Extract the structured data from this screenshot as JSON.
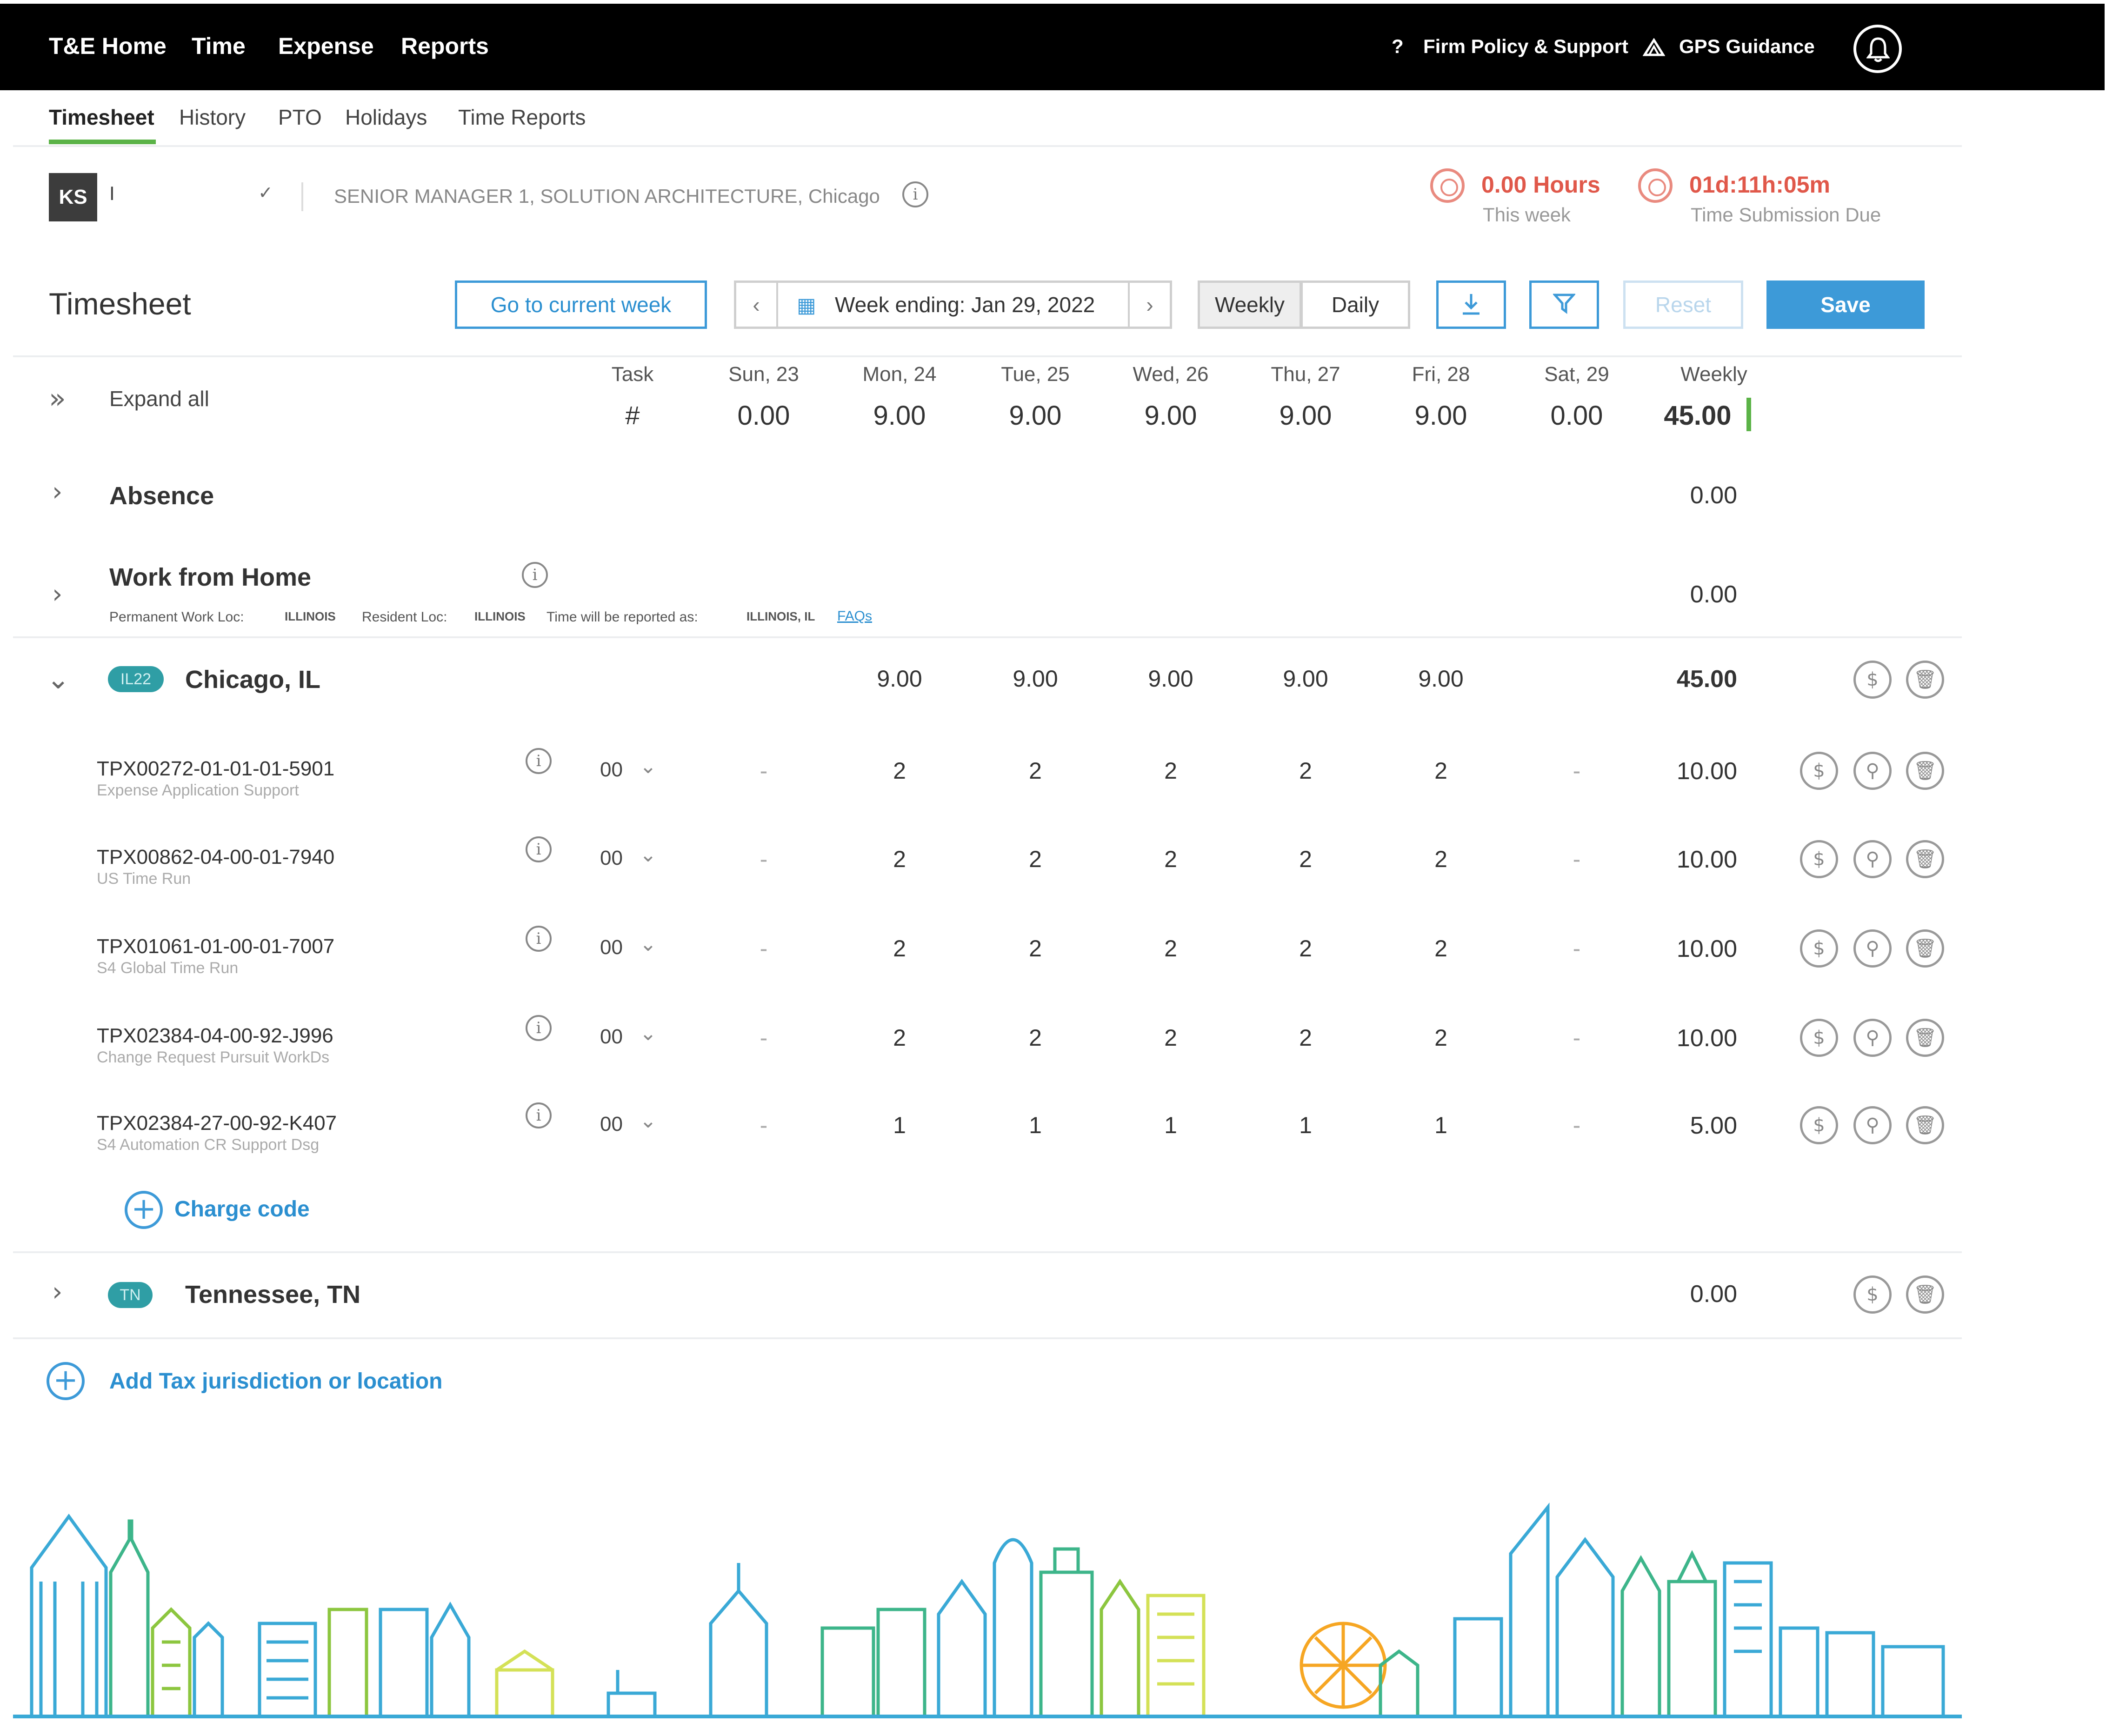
{
  "topbar": {
    "nav": [
      "T&E Home",
      "Time",
      "Expense",
      "Reports"
    ],
    "firm_policy": "Firm Policy & Support",
    "gps": "GPS Guidance"
  },
  "subnav": [
    "Timesheet",
    "History",
    "PTO",
    "Holidays",
    "Time Reports"
  ],
  "profile": {
    "initials": "KS",
    "name": "I",
    "title": "SENIOR MANAGER 1, SOLUTION ARCHITECTURE, Chicago"
  },
  "stats": {
    "hours_value": "0.00 Hours",
    "hours_label": "This week",
    "due_value": "01d:11h:05m",
    "due_label": "Time Submission Due"
  },
  "toolbar": {
    "title": "Timesheet",
    "current_week": "Go to current week",
    "week_ending": "Week ending: Jan 29, 2022",
    "weekly": "Weekly",
    "daily": "Daily",
    "reset": "Reset",
    "save": "Save"
  },
  "grid": {
    "expand_all": "Expand all",
    "task_header": "Task",
    "task_hash": "#",
    "days": [
      "Sun, 23",
      "Mon, 24",
      "Tue, 25",
      "Wed, 26",
      "Thu, 27",
      "Fri, 28",
      "Sat, 29"
    ],
    "weekly_header": "Weekly",
    "day_totals": [
      "0.00",
      "9.00",
      "9.00",
      "9.00",
      "9.00",
      "9.00",
      "0.00"
    ],
    "weekly_total": "45.00"
  },
  "absence": {
    "label": "Absence",
    "total": "0.00"
  },
  "wfh": {
    "label": "Work from Home",
    "total": "0.00",
    "note_perm_label": "Permanent Work Loc:",
    "note_perm_value": "ILLINOIS",
    "note_res_label": "Resident Loc:",
    "note_res_value": "ILLINOIS",
    "note_rep_label": "Time will be reported as:",
    "note_rep_value": "ILLINOIS, IL",
    "faqs": "FAQs"
  },
  "chicago": {
    "badge": "IL22",
    "label": "Chicago, IL",
    "day_values": [
      "9.00",
      "9.00",
      "9.00",
      "9.00",
      "9.00"
    ],
    "total": "45.00",
    "rows": [
      {
        "code": "TPX00272-01-01-01-5901",
        "desc": "Expense Application Support",
        "task": "00",
        "sun": "-",
        "mon": "2",
        "tue": "2",
        "wed": "2",
        "thu": "2",
        "fri": "2",
        "sat": "-",
        "total": "10.00"
      },
      {
        "code": "TPX00862-04-00-01-7940",
        "desc": "US Time Run",
        "task": "00",
        "sun": "-",
        "mon": "2",
        "tue": "2",
        "wed": "2",
        "thu": "2",
        "fri": "2",
        "sat": "-",
        "total": "10.00"
      },
      {
        "code": "TPX01061-01-00-01-7007",
        "desc": "S4 Global Time Run",
        "task": "00",
        "sun": "-",
        "mon": "2",
        "tue": "2",
        "wed": "2",
        "thu": "2",
        "fri": "2",
        "sat": "-",
        "total": "10.00"
      },
      {
        "code": "TPX02384-04-00-92-J996",
        "desc": "Change Request Pursuit WorkDs",
        "task": "00",
        "sun": "-",
        "mon": "2",
        "tue": "2",
        "wed": "2",
        "thu": "2",
        "fri": "2",
        "sat": "-",
        "total": "10.00"
      },
      {
        "code": "TPX02384-27-00-92-K407",
        "desc": "S4 Automation CR Support Dsg",
        "task": "00",
        "sun": "-",
        "mon": "1",
        "tue": "1",
        "wed": "1",
        "thu": "1",
        "fri": "1",
        "sat": "-",
        "total": "5.00"
      }
    ],
    "add_charge": "Charge code"
  },
  "tennessee": {
    "badge": "TN",
    "label": "Tennessee, TN",
    "total": "0.00"
  },
  "add_tax": "Add Tax jurisdiction or location",
  "colors": {
    "accent": "#3d9ad8",
    "alert": "#e0584a",
    "active_underline": "#5bb347",
    "badge": "#2f9ea5"
  }
}
